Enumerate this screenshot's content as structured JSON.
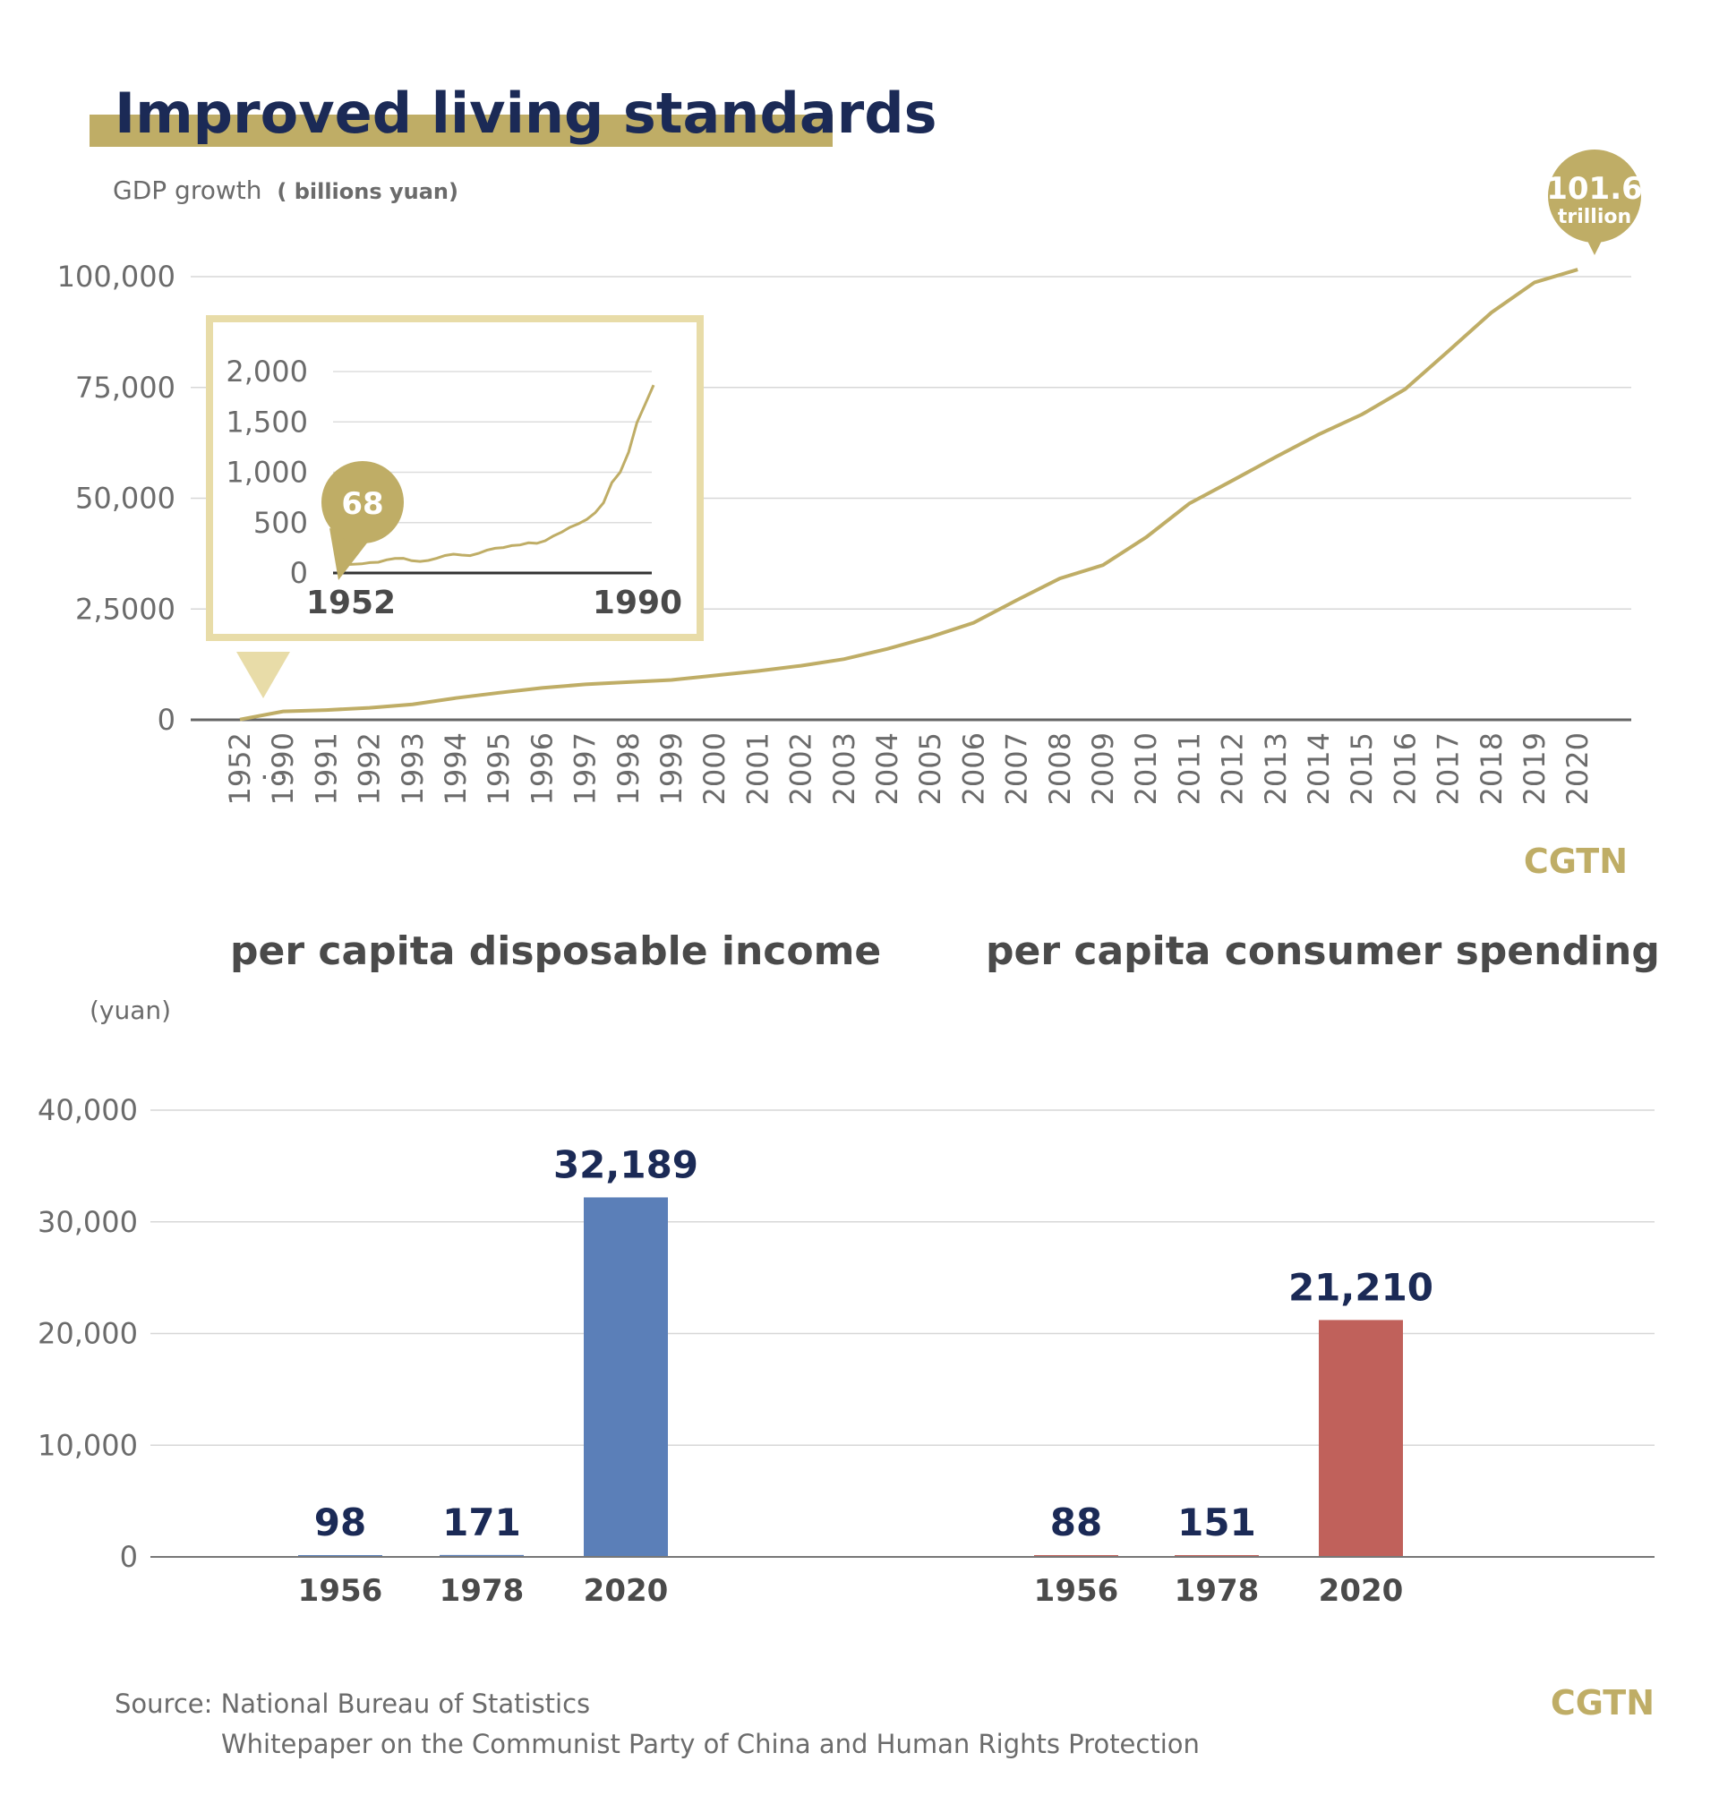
{
  "header": {
    "title": "Improved living standards",
    "gdp_label": "GDP growth",
    "gdp_unit": "( billions yuan)",
    "bubble_value": "101.6",
    "bubble_unit": "trillion"
  },
  "inset": {
    "bubble_value": "68",
    "start_label": "1952",
    "end_label": "1990",
    "y_ticks": [
      "2,000",
      "1,500",
      "1,000",
      "500",
      "0"
    ]
  },
  "gdp_axis": {
    "y_ticks": [
      "100,000",
      "75,000",
      "50,000",
      "2,5000",
      "0"
    ],
    "ellipsis": "…"
  },
  "brand": {
    "top": "CGTN",
    "bottom": "CGTN"
  },
  "bar_section": {
    "left_title": "per capita disposable income",
    "right_title": "per capita consumer spending",
    "unit": "(yuan)",
    "y_ticks": [
      "40,000",
      "30,000",
      "20,000",
      "10,000",
      "0"
    ]
  },
  "source": {
    "line1": "Source: National Bureau of Statistics",
    "line2": "Whitepaper on the Communist Party of China and Human Rights Protection"
  },
  "colors": {
    "gold": "#bfad66",
    "inset_border": "#e8dca8",
    "navy": "#1b2a56",
    "income_bar": "#5b7fb8",
    "spending_bar": "#c0615b",
    "grid": "#d7d7d7"
  },
  "chart_data": [
    {
      "type": "line",
      "title": "GDP growth",
      "ylabel": "billions yuan",
      "ylim": [
        0,
        100000
      ],
      "x": [
        "1952",
        "1990",
        "1991",
        "1992",
        "1993",
        "1994",
        "1995",
        "1996",
        "1997",
        "1998",
        "1999",
        "2000",
        "2001",
        "2002",
        "2003",
        "2004",
        "2005",
        "2006",
        "2007",
        "2008",
        "2009",
        "2010",
        "2011",
        "2012",
        "2013",
        "2014",
        "2015",
        "2016",
        "2017",
        "2018",
        "2019",
        "2020"
      ],
      "values": [
        68,
        1900,
        2200,
        2700,
        3500,
        4900,
        6100,
        7200,
        8000,
        8500,
        9000,
        10000,
        11000,
        12200,
        13700,
        16000,
        18700,
        21900,
        27000,
        31900,
        34900,
        41200,
        48800,
        54000,
        59300,
        64400,
        68900,
        74600,
        83200,
        91900,
        98700,
        101600
      ]
    },
    {
      "type": "line",
      "title": "",
      "x_range": [
        "1952",
        "1990"
      ],
      "ylim": [
        0,
        2000
      ],
      "x": [
        1952,
        1953,
        1954,
        1955,
        1956,
        1957,
        1958,
        1959,
        1960,
        1961,
        1962,
        1963,
        1964,
        1965,
        1966,
        1967,
        1968,
        1969,
        1970,
        1971,
        1972,
        1973,
        1974,
        1975,
        1976,
        1977,
        1978,
        1979,
        1980,
        1981,
        1982,
        1983,
        1984,
        1985,
        1986,
        1987,
        1988,
        1989,
        1990
      ],
      "values": [
        68,
        82,
        86,
        91,
        103,
        107,
        131,
        144,
        146,
        122,
        115,
        124,
        146,
        173,
        187,
        178,
        172,
        195,
        226,
        245,
        252,
        272,
        278,
        300,
        294,
        320,
        368,
        406,
        455,
        489,
        532,
        598,
        697,
        898,
        1000,
        1198,
        1492,
        1677,
        1866
      ]
    },
    {
      "type": "bar",
      "title": "per capita disposable income",
      "ylabel": "yuan",
      "ylim": [
        0,
        40000
      ],
      "categories": [
        "1956",
        "1978",
        "2020"
      ],
      "values": [
        98,
        171,
        32189
      ],
      "value_labels": [
        "98",
        "171",
        "32,189"
      ]
    },
    {
      "type": "bar",
      "title": "per capita consumer spending",
      "ylabel": "yuan",
      "ylim": [
        0,
        40000
      ],
      "categories": [
        "1956",
        "1978",
        "2020"
      ],
      "values": [
        88,
        151,
        21210
      ],
      "value_labels": [
        "88",
        "151",
        "21,210"
      ]
    }
  ]
}
